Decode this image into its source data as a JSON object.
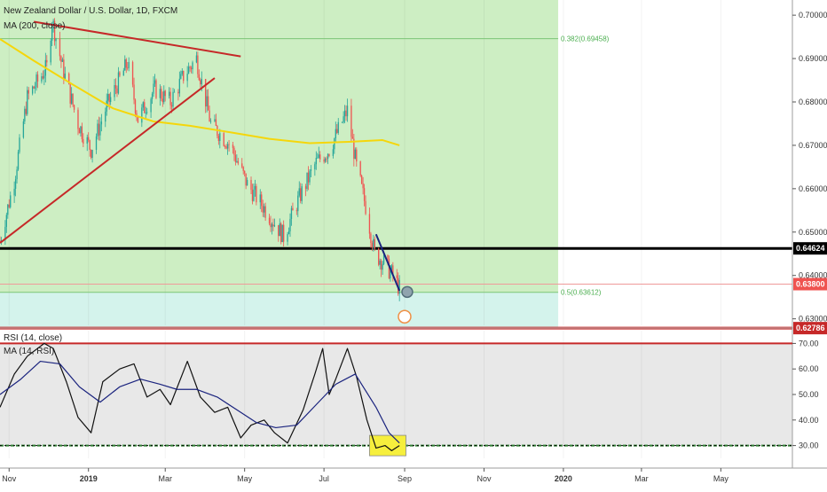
{
  "title": "New Zealand Dollar / U.S. Dollar, 1D, FXCM",
  "ma_legend": "MA (200, close)",
  "rsi_legend": "RSI (14, close)",
  "rsi_ma_legend": "MA (14, RSI)",
  "colors": {
    "up": "#26a69a",
    "down": "#ef5350",
    "ma200": "#f5d60b",
    "trendline": "#c62828",
    "green_zone": "#cdeec3",
    "teal_zone": "#d4f3ec",
    "rsi": "#111111",
    "rsi_ma": "#1a237e",
    "highlight": "#f6ef3d"
  },
  "price_axis": {
    "ticks": [
      "0.70000",
      "0.69000",
      "0.68000",
      "0.67000",
      "0.66000",
      "0.65000",
      "0.64000",
      "0.63000"
    ],
    "tick_values": [
      0.7,
      0.69,
      0.68,
      0.67,
      0.66,
      0.65,
      0.64,
      0.63
    ],
    "badges": [
      {
        "text": "0.64624",
        "value": 0.64624,
        "bg": "#000000"
      },
      {
        "text": "0.63800",
        "value": 0.638,
        "bg": "#ef5350"
      },
      {
        "text": "0.62786",
        "value": 0.62786,
        "bg": "#c62828"
      }
    ]
  },
  "rsi_axis": {
    "ticks": [
      "70.00",
      "60.00",
      "50.00",
      "40.00",
      "30.00"
    ],
    "tick_values": [
      70,
      60,
      50,
      40,
      30
    ]
  },
  "time_axis": {
    "labels": [
      "Nov",
      "2019",
      "Mar",
      "May",
      "Jul",
      "Sep",
      "Nov",
      "2020",
      "Mar",
      "May"
    ],
    "bold": [
      false,
      true,
      false,
      false,
      false,
      false,
      false,
      true,
      false,
      false
    ]
  },
  "fib_labels": [
    {
      "text": "0.382(0.69458)",
      "value": 0.69458
    },
    {
      "text": "0.5(0.63612)",
      "value": 0.63612
    }
  ],
  "chart_data": {
    "type": "candlestick",
    "title": "New Zealand Dollar / U.S. Dollar, 1D, FXCM",
    "ylim": [
      0.6285,
      0.7035
    ],
    "rsi_ylim": [
      25,
      75
    ],
    "x_range": [
      "2018-10-25",
      "2020-06-25"
    ],
    "price_anchors": [
      [
        "2018-10-25",
        0.648
      ],
      [
        "2018-11-05",
        0.662
      ],
      [
        "2018-11-15",
        0.681
      ],
      [
        "2018-11-30",
        0.688
      ],
      [
        "2018-12-04",
        0.699
      ],
      [
        "2018-12-12",
        0.688
      ],
      [
        "2018-12-24",
        0.675
      ],
      [
        "2019-01-03",
        0.669
      ],
      [
        "2019-01-15",
        0.679
      ],
      [
        "2019-01-31",
        0.689
      ],
      [
        "2019-02-08",
        0.676
      ],
      [
        "2019-02-21",
        0.683
      ],
      [
        "2019-03-05",
        0.68
      ],
      [
        "2019-03-15",
        0.686
      ],
      [
        "2019-03-25",
        0.69
      ],
      [
        "2019-04-05",
        0.675
      ],
      [
        "2019-04-20",
        0.67
      ],
      [
        "2019-05-03",
        0.661
      ],
      [
        "2019-05-15",
        0.656
      ],
      [
        "2019-05-31",
        0.649
      ],
      [
        "2019-06-12",
        0.658
      ],
      [
        "2019-06-25",
        0.666
      ],
      [
        "2019-07-05",
        0.669
      ],
      [
        "2019-07-19",
        0.678
      ],
      [
        "2019-07-26",
        0.665
      ],
      [
        "2019-08-02",
        0.656
      ],
      [
        "2019-08-09",
        0.645
      ],
      [
        "2019-08-16",
        0.643
      ],
      [
        "2019-08-23",
        0.64
      ],
      [
        "2019-08-28",
        0.637
      ]
    ],
    "series": [
      {
        "name": "MA (200, close)",
        "points": [
          [
            "2018-10-25",
            0.6945
          ],
          [
            "2018-11-20",
            0.6895
          ],
          [
            "2018-12-20",
            0.684
          ],
          [
            "2019-01-20",
            0.6785
          ],
          [
            "2019-02-20",
            0.6755
          ],
          [
            "2019-03-20",
            0.6745
          ],
          [
            "2019-04-20",
            0.673
          ],
          [
            "2019-05-20",
            0.6715
          ],
          [
            "2019-06-20",
            0.6705
          ],
          [
            "2019-07-20",
            0.6708
          ],
          [
            "2019-08-15",
            0.6712
          ],
          [
            "2019-08-28",
            0.67
          ]
        ]
      },
      {
        "name": "RSI (14, close)",
        "points": [
          [
            "2018-10-25",
            45
          ],
          [
            "2018-11-05",
            58
          ],
          [
            "2018-11-15",
            65
          ],
          [
            "2018-11-28",
            70
          ],
          [
            "2018-12-05",
            68
          ],
          [
            "2018-12-15",
            55
          ],
          [
            "2018-12-24",
            41
          ],
          [
            "2019-01-03",
            35
          ],
          [
            "2019-01-12",
            55
          ],
          [
            "2019-01-25",
            60
          ],
          [
            "2019-02-05",
            62
          ],
          [
            "2019-02-15",
            49
          ],
          [
            "2019-02-25",
            52
          ],
          [
            "2019-03-05",
            46
          ],
          [
            "2019-03-18",
            63
          ],
          [
            "2019-03-28",
            49
          ],
          [
            "2019-04-08",
            43
          ],
          [
            "2019-04-18",
            45
          ],
          [
            "2019-04-28",
            33
          ],
          [
            "2019-05-06",
            38
          ],
          [
            "2019-05-16",
            40
          ],
          [
            "2019-05-24",
            35
          ],
          [
            "2019-06-03",
            31
          ],
          [
            "2019-06-15",
            44
          ],
          [
            "2019-06-24",
            58
          ],
          [
            "2019-06-30",
            68
          ],
          [
            "2019-07-05",
            50
          ],
          [
            "2019-07-10",
            56
          ],
          [
            "2019-07-19",
            68
          ],
          [
            "2019-07-26",
            57
          ],
          [
            "2019-08-03",
            40
          ],
          [
            "2019-08-10",
            29
          ],
          [
            "2019-08-17",
            30
          ],
          [
            "2019-08-22",
            28
          ],
          [
            "2019-08-28",
            30
          ]
        ]
      },
      {
        "name": "MA (14, RSI)",
        "points": [
          [
            "2018-10-25",
            50
          ],
          [
            "2018-11-10",
            56
          ],
          [
            "2018-11-25",
            63
          ],
          [
            "2018-12-10",
            62
          ],
          [
            "2018-12-25",
            53
          ],
          [
            "2019-01-10",
            47
          ],
          [
            "2019-01-25",
            53
          ],
          [
            "2019-02-10",
            56
          ],
          [
            "2019-02-25",
            54
          ],
          [
            "2019-03-10",
            52
          ],
          [
            "2019-03-25",
            52
          ],
          [
            "2019-04-10",
            49
          ],
          [
            "2019-04-25",
            44
          ],
          [
            "2019-05-10",
            39
          ],
          [
            "2019-05-25",
            37
          ],
          [
            "2019-06-10",
            38
          ],
          [
            "2019-06-25",
            46
          ],
          [
            "2019-07-10",
            54
          ],
          [
            "2019-07-25",
            58
          ],
          [
            "2019-08-10",
            45
          ],
          [
            "2019-08-20",
            35
          ],
          [
            "2019-08-28",
            31
          ]
        ]
      }
    ],
    "horizontal_lines": [
      {
        "name": "support",
        "value": 0.64624,
        "color": "#000000"
      },
      {
        "name": "current",
        "value": 0.638,
        "color": "#ef5350"
      },
      {
        "name": "fib-0.5",
        "value": 0.63612,
        "color": "#66bb6a"
      },
      {
        "name": "fib-0.382",
        "value": 0.69458,
        "color": "#66bb6a"
      },
      {
        "name": "low-line",
        "value": 0.62786,
        "color": "#c62828"
      }
    ],
    "rsi_levels": [
      70,
      30
    ],
    "trendlines": [
      {
        "from": [
          "2018-10-25",
          0.6475
        ],
        "to": [
          "2019-04-08",
          0.6855
        ],
        "color": "#c62828"
      },
      {
        "from": [
          "2018-11-20",
          0.6985
        ],
        "to": [
          "2019-04-28",
          0.6905
        ],
        "color": "#c62828"
      },
      {
        "from": [
          "2019-08-10",
          0.6495
        ],
        "to": [
          "2019-08-28",
          0.6365
        ],
        "color": "#1a237e"
      }
    ]
  }
}
